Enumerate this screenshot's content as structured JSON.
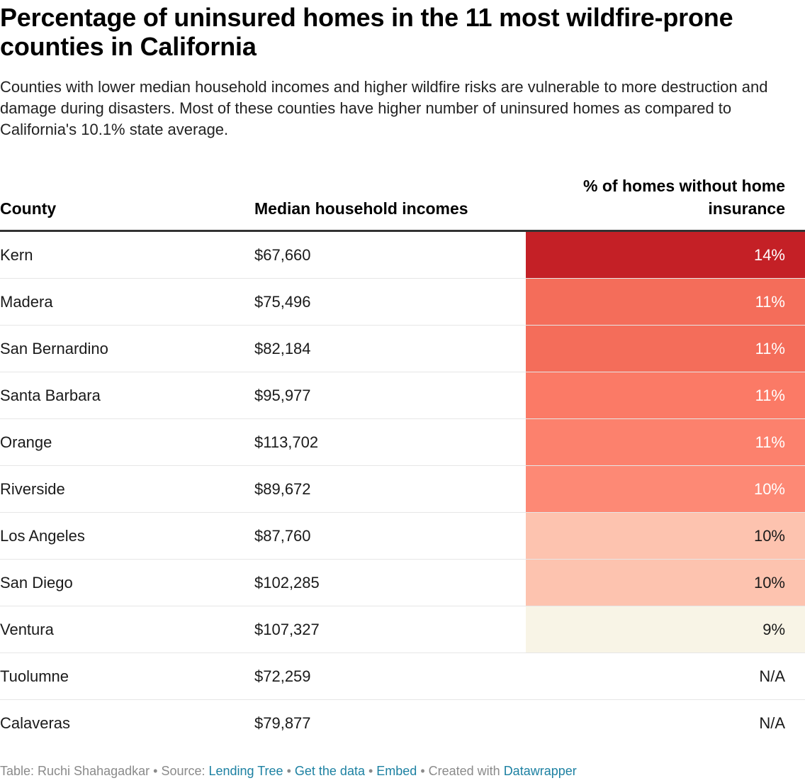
{
  "chart_data": {
    "type": "table",
    "title": "Percentage of uninsured homes in the 11 most wildfire-prone counties in California",
    "subtitle": "Counties with lower median household incomes and higher wildfire risks are vulnerable to more destruction and damage during disasters. Most of these counties have higher number of uninsured homes as compared to California's 10.1% state average.",
    "columns": [
      "County",
      "Median household incomes",
      "% of homes without home insurance"
    ],
    "rows": [
      {
        "county": "Kern",
        "income": "$67,660",
        "pct": "14%",
        "value": 14,
        "color": "#c42026",
        "text_color": "#ffffff"
      },
      {
        "county": "Madera",
        "income": "$75,496",
        "pct": "11%",
        "value": 11,
        "color": "#f46d5a",
        "text_color": "#ffffff"
      },
      {
        "county": "San Bernardino",
        "income": "$82,184",
        "pct": "11%",
        "value": 11,
        "color": "#f46d5a",
        "text_color": "#ffffff"
      },
      {
        "county": "Santa Barbara",
        "income": "$95,977",
        "pct": "11%",
        "value": 11,
        "color": "#fb7a66",
        "text_color": "#ffffff"
      },
      {
        "county": "Orange",
        "income": "$113,702",
        "pct": "11%",
        "value": 11,
        "color": "#fc816d",
        "text_color": "#ffffff"
      },
      {
        "county": "Riverside",
        "income": "$89,672",
        "pct": "10%",
        "value": 10,
        "color": "#fd8975",
        "text_color": "#ffffff"
      },
      {
        "county": "Los Angeles",
        "income": "$87,760",
        "pct": "10%",
        "value": 10,
        "color": "#fdc3af",
        "text_color": "#1a1a1a"
      },
      {
        "county": "San Diego",
        "income": "$102,285",
        "pct": "10%",
        "value": 10,
        "color": "#fdc3af",
        "text_color": "#1a1a1a"
      },
      {
        "county": "Ventura",
        "income": "$107,327",
        "pct": "9%",
        "value": 9,
        "color": "#f8f4e6",
        "text_color": "#1a1a1a"
      },
      {
        "county": "Tuolumne",
        "income": "$72,259",
        "pct": "N/A",
        "value": null,
        "color": "#ffffff",
        "text_color": "#1a1a1a"
      },
      {
        "county": "Calaveras",
        "income": "$79,877",
        "pct": "N/A",
        "value": null,
        "color": "#ffffff",
        "text_color": "#1a1a1a"
      }
    ]
  },
  "footer": {
    "prefix": "Table: Ruchi Shahagadkar • Source: ",
    "source_link": "Lending Tree",
    "sep1": " • ",
    "get_data": "Get the data",
    "sep2": " • ",
    "embed": "Embed",
    "created": "  • Created with ",
    "datawrapper": "Datawrapper"
  }
}
